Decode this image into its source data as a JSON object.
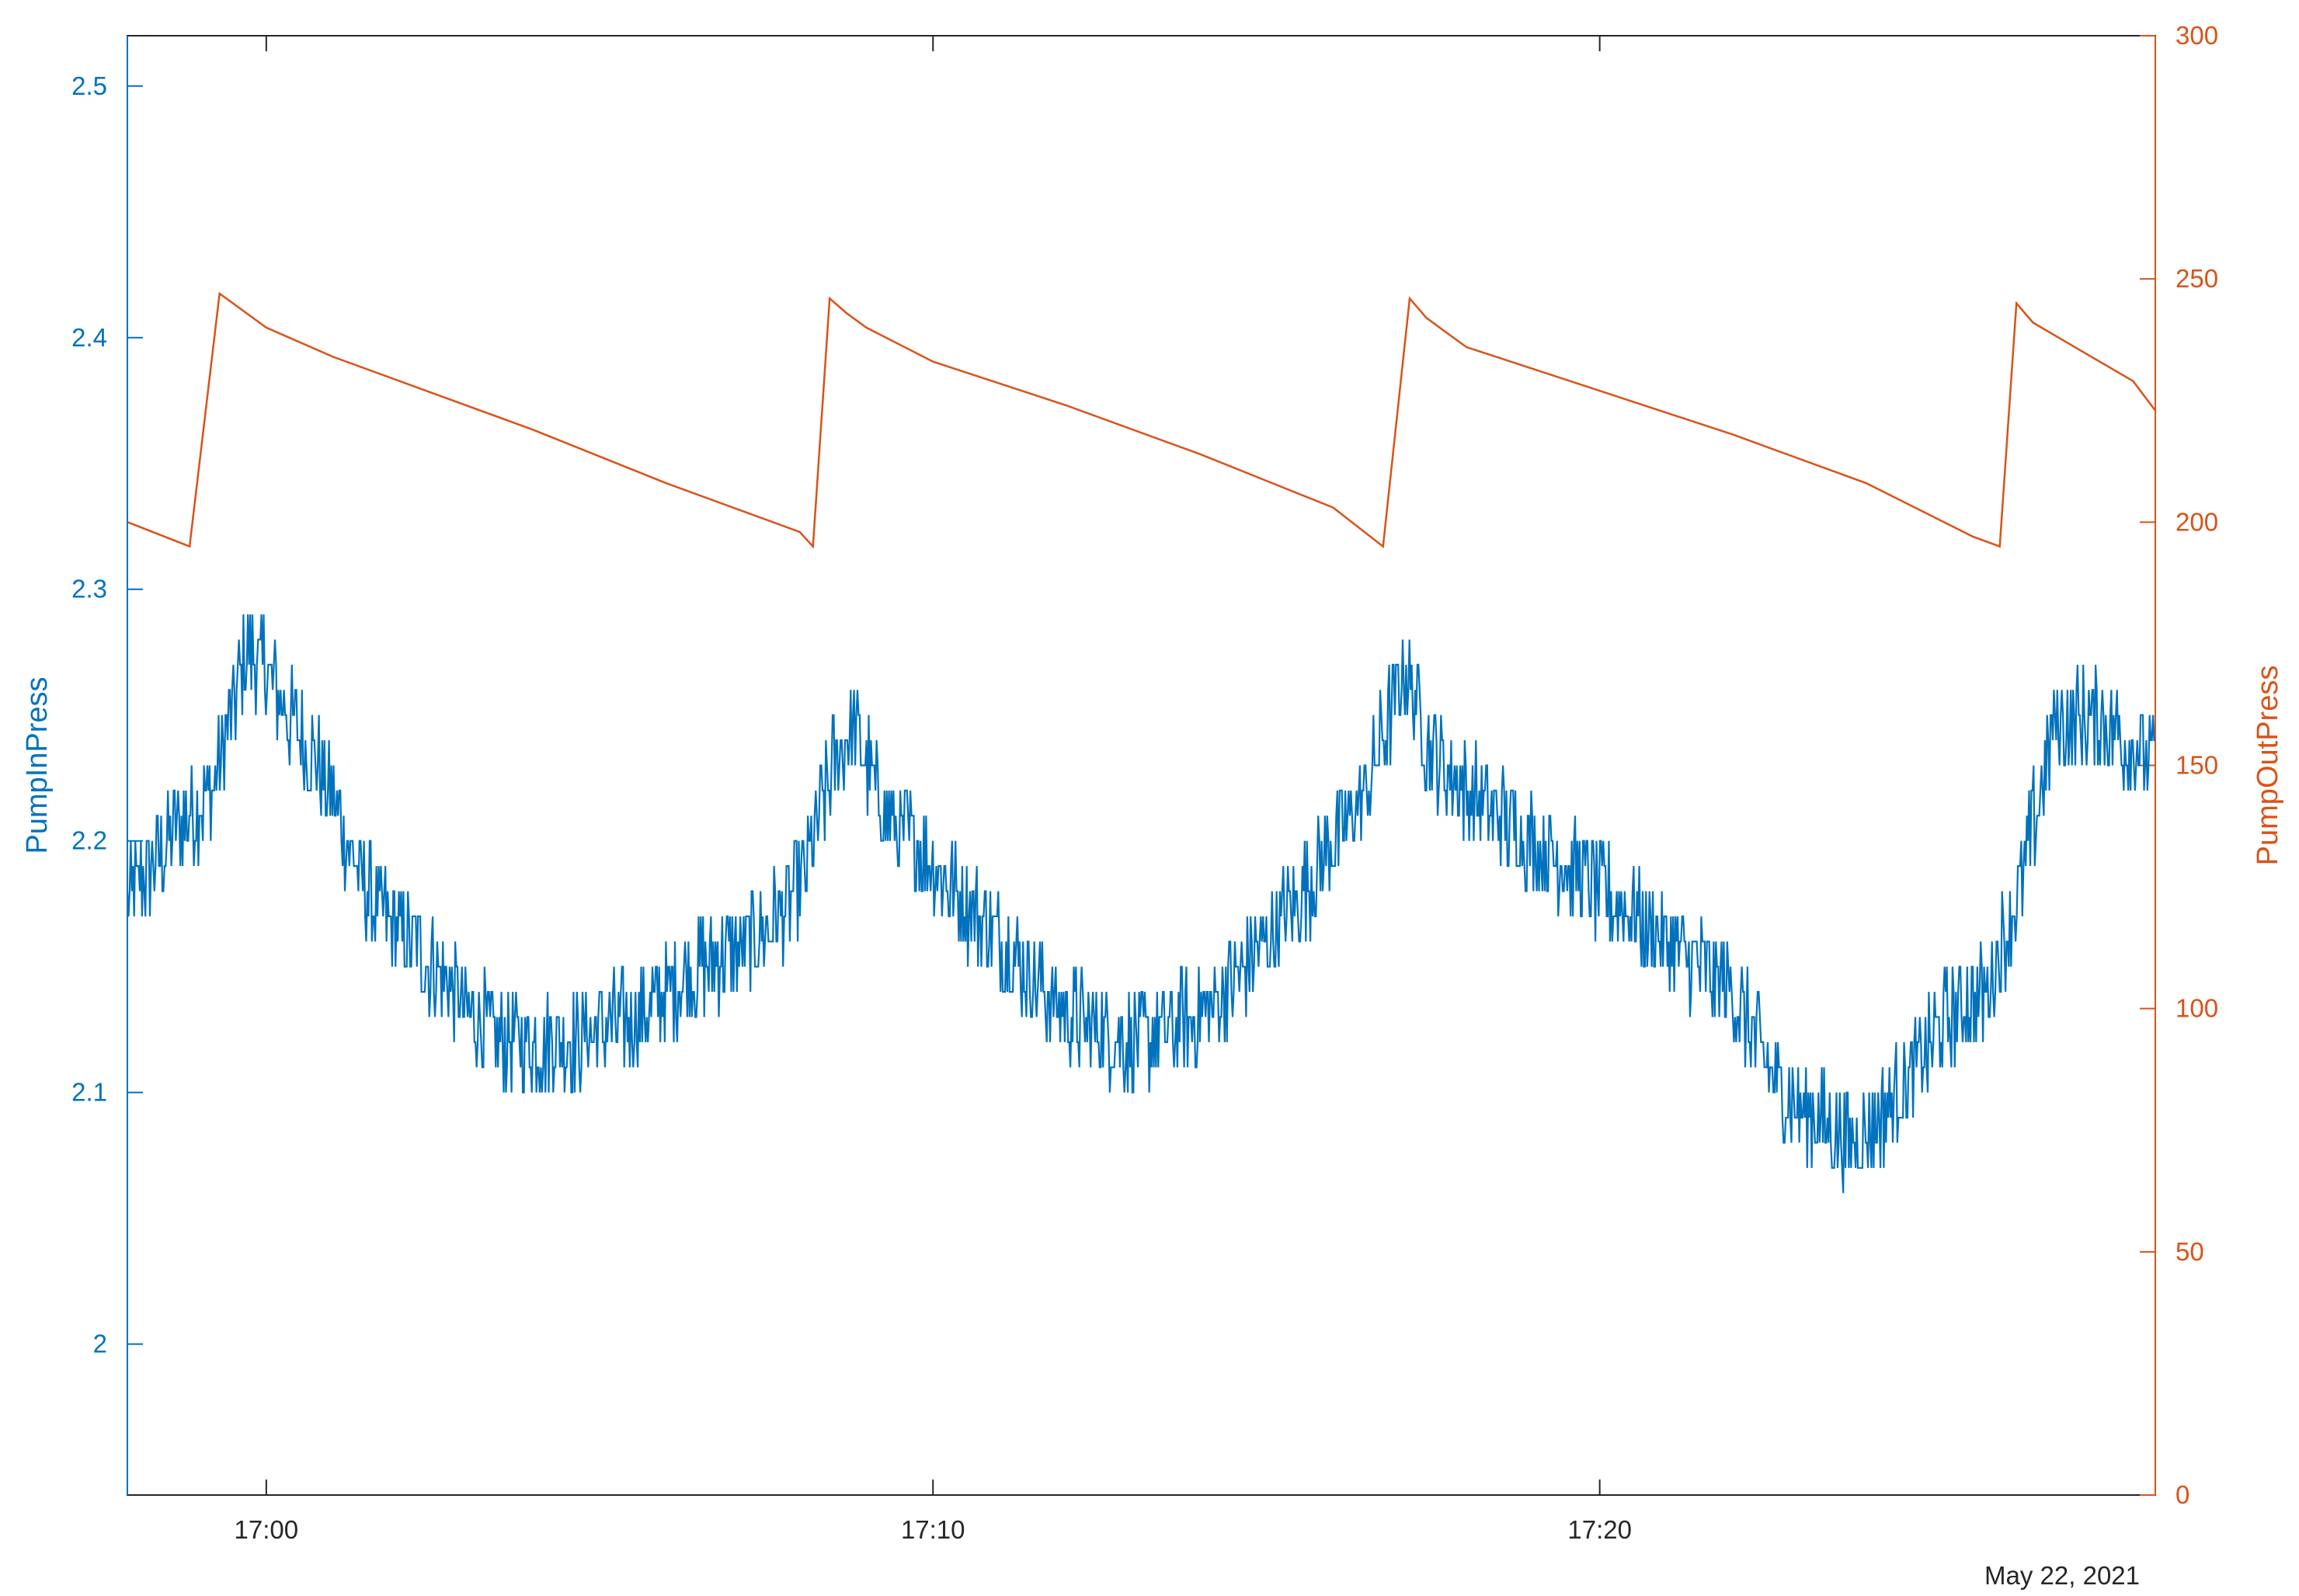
{
  "chart_data": {
    "type": "line",
    "title": "",
    "date_label": "May 22, 2021",
    "x_axis": {
      "unit": "time",
      "range": [
        "16:57:55",
        "17:28:20"
      ],
      "ticks": [
        "17:00",
        "17:10",
        "17:20"
      ],
      "tick_minutes": [
        0,
        10,
        20
      ]
    },
    "y_left": {
      "label": "PumpInPress",
      "range": [
        1.94,
        2.52
      ],
      "ticks": [
        "2",
        "2.1",
        "2.2",
        "2.3",
        "2.4",
        "2.5"
      ],
      "tick_values": [
        2.0,
        2.1,
        2.2,
        2.3,
        2.4,
        2.5
      ],
      "color": "#0072BD"
    },
    "y_right": {
      "label": "PumpOutPress",
      "range": [
        0,
        300
      ],
      "ticks": [
        "0",
        "50",
        "100",
        "150",
        "200",
        "250",
        "300"
      ],
      "tick_values": [
        0,
        50,
        100,
        150,
        200,
        250,
        300
      ],
      "color": "#D95319"
    },
    "grid": false,
    "series": [
      {
        "name": "PumpOutPress",
        "axis": "right",
        "color": "#D95319",
        "x_minutes": [
          -2.08,
          -1.15,
          -0.7,
          0.0,
          1.0,
          2.0,
          4.0,
          6.0,
          8.0,
          8.2,
          8.45,
          8.7,
          9.0,
          10.0,
          12.0,
          14.0,
          16.0,
          16.75,
          17.15,
          17.4,
          17.7,
          18.0,
          20.0,
          22.0,
          24.0,
          25.6,
          26.0,
          26.25,
          26.5,
          27.0,
          28.0,
          28.33
        ],
        "values": [
          200,
          195,
          247,
          240,
          234,
          229,
          219,
          208,
          198,
          195,
          246,
          243,
          240,
          233,
          224,
          214,
          203,
          195,
          246,
          242,
          239,
          236,
          227,
          218,
          208,
          197,
          195,
          245,
          241,
          237,
          229,
          223
        ]
      },
      {
        "name": "PumpInPress",
        "axis": "left",
        "color": "#0072BD",
        "anchors_minutes": [
          -2.08,
          -1.5,
          -0.8,
          -0.3,
          0.0,
          0.3,
          0.8,
          1.5,
          2.5,
          3.5,
          4.5,
          5.5,
          6.5,
          7.3,
          8.0,
          8.5,
          8.8,
          9.3,
          10.0,
          11.0,
          12.0,
          13.0,
          14.0,
          15.0,
          15.8,
          16.5,
          17.1,
          17.4,
          18.0,
          19.0,
          20.0,
          21.0,
          22.0,
          22.7,
          23.2,
          23.8,
          24.5,
          25.2,
          25.8,
          26.3,
          26.8,
          27.5,
          28.33
        ],
        "anchors_values": [
          2.175,
          2.2,
          2.22,
          2.275,
          2.27,
          2.25,
          2.23,
          2.18,
          2.15,
          2.12,
          2.12,
          2.13,
          2.15,
          2.16,
          2.18,
          2.23,
          2.245,
          2.21,
          2.19,
          2.16,
          2.13,
          2.12,
          2.13,
          2.16,
          2.19,
          2.22,
          2.27,
          2.24,
          2.22,
          2.2,
          2.18,
          2.16,
          2.14,
          2.1,
          2.09,
          2.08,
          2.1,
          2.13,
          2.14,
          2.18,
          2.245,
          2.25,
          2.23
        ],
        "noise_amplitude": 0.02
      }
    ]
  }
}
